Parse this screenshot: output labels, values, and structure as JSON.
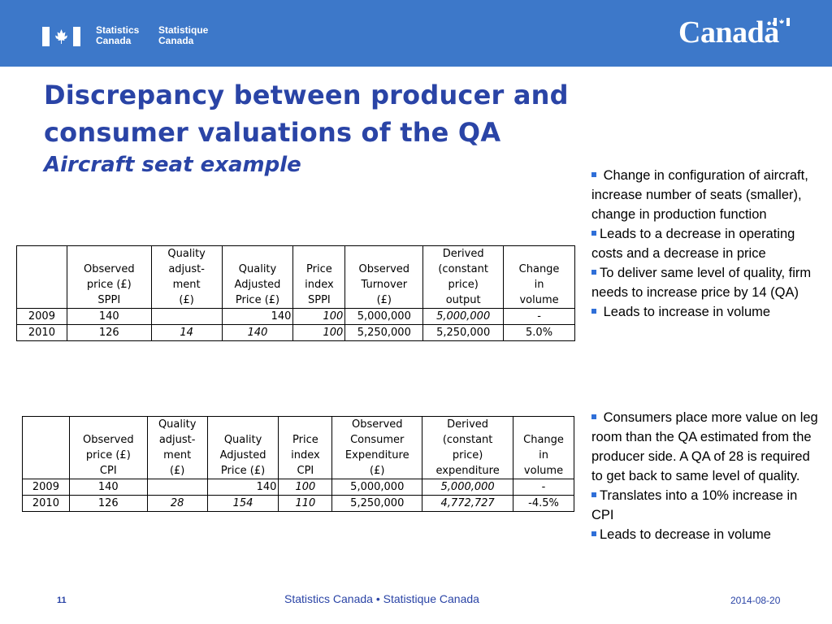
{
  "header": {
    "org_en": [
      "Statistics",
      "Canada"
    ],
    "org_fr": [
      "Statistique",
      "Canada"
    ],
    "wordmark": "Canadä",
    "bg_color": "#3d78c9"
  },
  "slide": {
    "title_line1": "Discrepancy between producer and",
    "title_line2": "consumer valuations of the QA",
    "subtitle": "Aircraft seat example",
    "title_color": "#2a44a6"
  },
  "table1": {
    "headers": [
      [],
      [
        "Observed",
        "price (£)",
        "SPPI"
      ],
      [
        "Quality",
        "adjust-",
        "ment",
        "(£)"
      ],
      [
        "Quality",
        "Adjusted",
        "Price (£)"
      ],
      [
        "Price",
        "index",
        "SPPI"
      ],
      [
        "Observed",
        "Turnover",
        "(£)"
      ],
      [
        "Derived",
        "(constant",
        "price)",
        "output"
      ],
      [
        "Change",
        "in",
        "volume"
      ]
    ],
    "rows": [
      [
        "2009",
        "140",
        "",
        "140",
        "100",
        "5,000,000",
        "5,000,000",
        "-"
      ],
      [
        "2010",
        "126",
        "14",
        "140",
        "100",
        "5,250,000",
        "5,250,000",
        "5.0%"
      ]
    ]
  },
  "table2": {
    "headers": [
      [],
      [
        "Observed",
        "price (£)",
        "CPI"
      ],
      [
        "Quality",
        "adjust-",
        "ment",
        "(£)"
      ],
      [
        "Quality",
        "Adjusted",
        "Price (£)"
      ],
      [
        "Price",
        "index",
        "CPI"
      ],
      [
        "Observed",
        "Consumer",
        "Expenditure",
        "(£)"
      ],
      [
        "Derived",
        "(constant",
        "price)",
        "expenditure"
      ],
      [
        "Change",
        "in",
        "volume"
      ]
    ],
    "rows": [
      [
        "2009",
        "140",
        "",
        "140",
        "100",
        "5,000,000",
        "5,000,000",
        "-"
      ],
      [
        "2010",
        "126",
        "28",
        "154",
        "110",
        "5,250,000",
        "4,772,727",
        "-4.5%"
      ]
    ]
  },
  "bullets_producer": [
    " Change in configuration of aircraft, increase number of seats (smaller), change in production function",
    "Leads to a decrease in operating costs and a decrease in price",
    "To deliver same level of quality, firm needs to increase price by 14 (QA)",
    " Leads to increase in volume"
  ],
  "bullets_consumer": [
    " Consumers place more value on leg room than the QA estimated from the producer side.  A  QA of 28 is required to get back to same level of quality.",
    "Translates into a 10% increase in CPI",
    "Leads to decrease in volume"
  ],
  "footer": {
    "page_number": "11",
    "center": "Statistics Canada • Statistique Canada",
    "date": "2014-08-20"
  }
}
